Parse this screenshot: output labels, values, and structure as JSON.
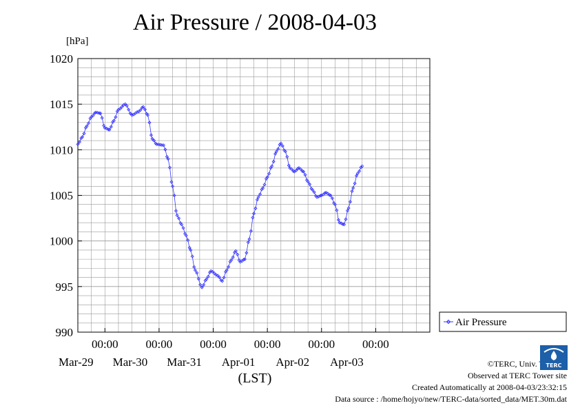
{
  "page": {
    "title": "Air Pressure / 2008-04-03",
    "unit_label": "[hPa]"
  },
  "credits": {
    "copyright": "©TERC, Univ. Tsukuba",
    "observed": "Observed at TERC Tower site",
    "created": "Created Automatically at 2008-04-03/23:32:15",
    "source": "Data source : /home/hojyo/new/TERC-data/sorted_data/MET.30m.dat"
  },
  "logo": {
    "icon": "terc-logo-icon",
    "text": "TERC"
  },
  "colors": {
    "series": "#3333ff",
    "frame": "#000000",
    "grid": "#999999",
    "background": "#ffffff"
  },
  "chart_data": {
    "type": "line",
    "title": "Air Pressure / 2008-04-03",
    "xlabel": "(LST)",
    "ylabel": "[hPa]",
    "ylim": [
      990,
      1020
    ],
    "xlim": [
      "2008-03-28 12:00",
      "2008-04-04 00:00"
    ],
    "y_ticks": [
      990,
      995,
      1000,
      1005,
      1010,
      1015,
      1020
    ],
    "x_ticks": [
      {
        "time": "00:00",
        "date": "Mar-29"
      },
      {
        "time": "00:00",
        "date": "Mar-30"
      },
      {
        "time": "00:00",
        "date": "Mar-31"
      },
      {
        "time": "00:00",
        "date": "Apr-01"
      },
      {
        "time": "00:00",
        "date": "Apr-02"
      },
      {
        "time": "00:00",
        "date": "Apr-03"
      }
    ],
    "grid": true,
    "legend_position": "right",
    "marker": "diamond",
    "series": [
      {
        "name": "Air Pressure",
        "points": [
          [
            "2008-03-28 12:00",
            1010.6
          ],
          [
            "2008-03-28 14:00",
            1011.4
          ],
          [
            "2008-03-28 16:00",
            1012.6
          ],
          [
            "2008-03-28 18:00",
            1013.6
          ],
          [
            "2008-03-28 20:00",
            1014.1
          ],
          [
            "2008-03-28 22:00",
            1014.0
          ],
          [
            "2008-03-29 00:00",
            1012.4
          ],
          [
            "2008-03-29 02:00",
            1012.2
          ],
          [
            "2008-03-29 04:00",
            1013.2
          ],
          [
            "2008-03-29 06:00",
            1014.4
          ],
          [
            "2008-03-29 09:00",
            1015.0
          ],
          [
            "2008-03-29 12:00",
            1013.8
          ],
          [
            "2008-03-29 15:00",
            1014.2
          ],
          [
            "2008-03-29 17:00",
            1014.7
          ],
          [
            "2008-03-29 19:00",
            1013.8
          ],
          [
            "2008-03-29 21:00",
            1011.2
          ],
          [
            "2008-03-29 23:00",
            1010.6
          ],
          [
            "2008-03-30 02:00",
            1010.5
          ],
          [
            "2008-03-30 04:00",
            1009.0
          ],
          [
            "2008-03-30 06:00",
            1006.0
          ],
          [
            "2008-03-30 08:00",
            1002.8
          ],
          [
            "2008-03-30 10:00",
            1001.8
          ],
          [
            "2008-03-30 12:00",
            1000.6
          ],
          [
            "2008-03-30 14:00",
            999.0
          ],
          [
            "2008-03-30 16:00",
            996.8
          ],
          [
            "2008-03-30 19:00",
            994.9
          ],
          [
            "2008-03-30 21:00",
            995.8
          ],
          [
            "2008-03-30 23:00",
            996.7
          ],
          [
            "2008-03-31 02:00",
            996.2
          ],
          [
            "2008-03-31 04:00",
            995.6
          ],
          [
            "2008-03-31 06:00",
            996.8
          ],
          [
            "2008-03-31 08:00",
            997.9
          ],
          [
            "2008-03-31 10:00",
            998.9
          ],
          [
            "2008-03-31 12:00",
            997.7
          ],
          [
            "2008-03-31 14:00",
            998.0
          ],
          [
            "2008-03-31 16:00",
            1000.2
          ],
          [
            "2008-03-31 18:00",
            1003.0
          ],
          [
            "2008-03-31 20:00",
            1004.8
          ],
          [
            "2008-03-31 22:00",
            1005.8
          ],
          [
            "2008-04-01 00:00",
            1007.0
          ],
          [
            "2008-04-01 02:00",
            1008.2
          ],
          [
            "2008-04-01 04:00",
            1009.8
          ],
          [
            "2008-04-01 06:00",
            1010.7
          ],
          [
            "2008-04-01 08:00",
            1009.8
          ],
          [
            "2008-04-01 10:00",
            1008.0
          ],
          [
            "2008-04-01 12:00",
            1007.6
          ],
          [
            "2008-04-01 14:00",
            1008.0
          ],
          [
            "2008-04-01 16:00",
            1007.6
          ],
          [
            "2008-04-01 18:00",
            1006.5
          ],
          [
            "2008-04-01 20:00",
            1005.6
          ],
          [
            "2008-04-01 22:00",
            1004.8
          ],
          [
            "2008-04-02 00:00",
            1005.0
          ],
          [
            "2008-04-02 02:00",
            1005.3
          ],
          [
            "2008-04-02 04:00",
            1005.0
          ],
          [
            "2008-04-02 06:00",
            1004.0
          ],
          [
            "2008-04-02 08:00",
            1002.0
          ],
          [
            "2008-04-02 10:00",
            1001.8
          ],
          [
            "2008-04-02 12:00",
            1003.6
          ],
          [
            "2008-04-02 14:00",
            1005.8
          ],
          [
            "2008-04-02 16:00",
            1007.4
          ],
          [
            "2008-04-02 18:00",
            1008.2
          ]
        ]
      }
    ]
  }
}
